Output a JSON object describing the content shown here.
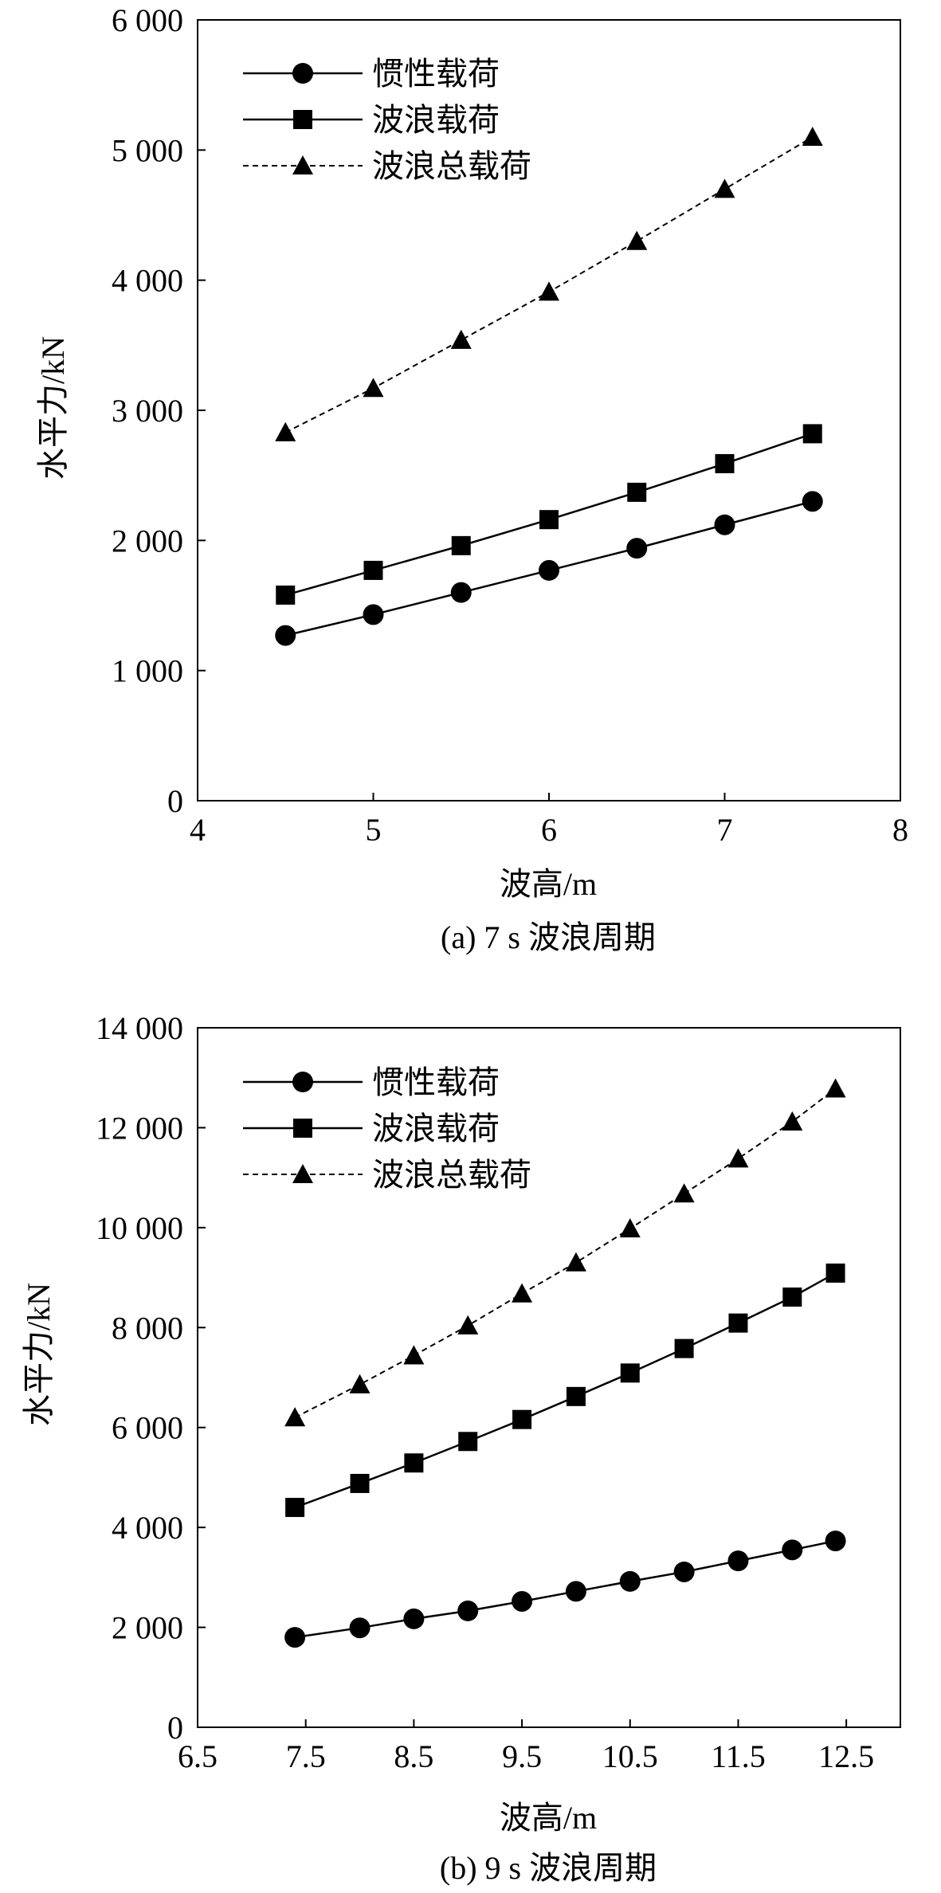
{
  "chart_data": [
    {
      "type": "line",
      "caption": "(a) 7 s 波浪周期",
      "xlabel": "波高/m",
      "ylabel": "水平力/kN",
      "xlim": [
        4,
        8
      ],
      "ylim": [
        0,
        6000
      ],
      "x_ticks": [
        4,
        5,
        6,
        7,
        8
      ],
      "x_tick_labels": [
        "4",
        "5",
        "6",
        "7",
        "8"
      ],
      "y_ticks": [
        0,
        1000,
        2000,
        3000,
        4000,
        5000,
        6000
      ],
      "y_tick_labels": [
        "0",
        "1 000",
        "2 000",
        "3 000",
        "4 000",
        "5 000",
        "6 000"
      ],
      "grid": false,
      "legend": "top-left",
      "x": [
        4.5,
        5,
        5.5,
        6,
        6.5,
        7,
        7.5
      ],
      "series": [
        {
          "name": "惯性载荷",
          "marker": "circle",
          "line": "solid",
          "values": [
            1270,
            1430,
            1600,
            1770,
            1940,
            2120,
            2300
          ]
        },
        {
          "name": "波浪载荷",
          "marker": "square",
          "line": "solid",
          "values": [
            1580,
            1770,
            1960,
            2160,
            2370,
            2590,
            2820
          ]
        },
        {
          "name": "波浪总载荷",
          "marker": "triangle",
          "line": "dashed",
          "values": [
            2830,
            3170,
            3540,
            3910,
            4300,
            4700,
            5100
          ]
        }
      ]
    },
    {
      "type": "line",
      "caption": "(b) 9 s 波浪周期",
      "xlabel": "波高/m",
      "ylabel": "水平力/kN",
      "xlim": [
        6.5,
        13.0
      ],
      "ylim": [
        0,
        14000
      ],
      "x_ticks": [
        6.5,
        7.5,
        8.5,
        9.5,
        10.5,
        11.5,
        12.5
      ],
      "x_tick_labels": [
        "6.5",
        "7.5",
        "8.5",
        "9.5",
        "10.5",
        "11.5",
        "12.5"
      ],
      "y_ticks": [
        0,
        2000,
        4000,
        6000,
        8000,
        10000,
        12000,
        14000
      ],
      "y_tick_labels": [
        "0",
        "2 000",
        "4 000",
        "6 000",
        "8 000",
        "10 000",
        "12 000",
        "14 000"
      ],
      "grid": false,
      "legend": "top-left",
      "x": [
        7.4,
        8.0,
        8.5,
        9.0,
        9.5,
        10.0,
        10.5,
        11.0,
        11.5,
        12.0,
        12.4
      ],
      "series": [
        {
          "name": "惯性载荷",
          "marker": "circle",
          "line": "solid",
          "values": [
            1800,
            1990,
            2170,
            2330,
            2520,
            2720,
            2920,
            3110,
            3330,
            3550,
            3730
          ]
        },
        {
          "name": "波浪载荷",
          "marker": "square",
          "line": "solid",
          "values": [
            4400,
            4880,
            5290,
            5720,
            6160,
            6620,
            7090,
            7580,
            8090,
            8610,
            9090
          ]
        },
        {
          "name": "波浪总载荷",
          "marker": "triangle",
          "line": "dashed",
          "values": [
            6200,
            6860,
            7440,
            8040,
            8680,
            9300,
            9980,
            10680,
            11380,
            12120,
            12780
          ]
        }
      ]
    }
  ]
}
